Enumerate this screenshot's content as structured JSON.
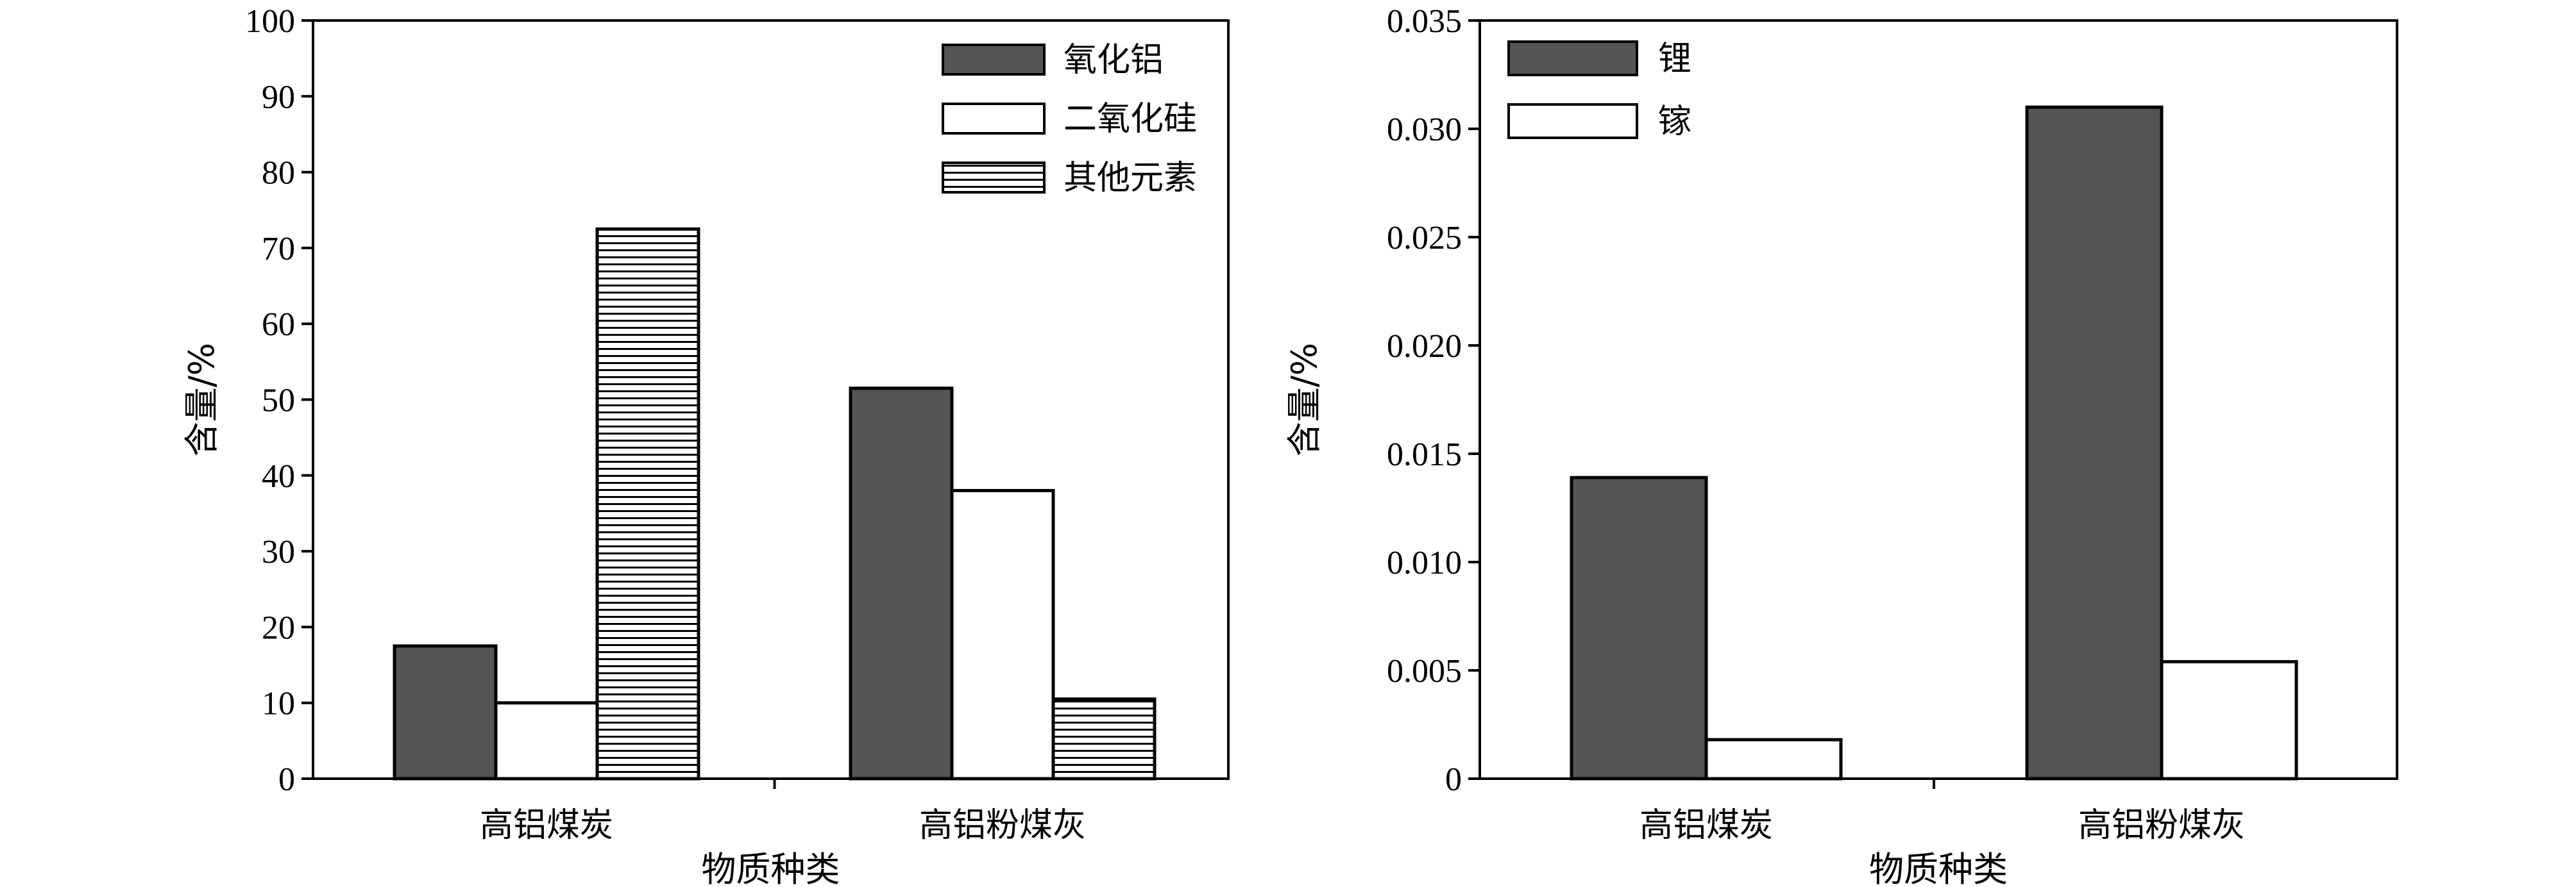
{
  "chart_data": [
    {
      "type": "bar",
      "categories": [
        "高铝煤炭",
        "高铝粉煤灰"
      ],
      "series": [
        {
          "name": "氧化铝",
          "values": [
            17.5,
            51.5
          ],
          "fill": "#555555",
          "pattern": "solid"
        },
        {
          "name": "二氧化硅",
          "values": [
            10,
            38
          ],
          "fill": "#ffffff",
          "pattern": "solid"
        },
        {
          "name": "其他元素",
          "values": [
            72.5,
            10.5
          ],
          "fill": "#ffffff",
          "pattern": "horizontal-lines"
        }
      ],
      "xlabel": "物质种类",
      "ylabel": "含量/%",
      "ylim": [
        0,
        100
      ],
      "yticks": [
        "0",
        "10",
        "20",
        "30",
        "40",
        "50",
        "60",
        "70",
        "80",
        "90",
        "100"
      ],
      "legend": "top-right",
      "grid": false
    },
    {
      "type": "bar",
      "categories": [
        "高铝煤炭",
        "高铝粉煤灰"
      ],
      "series": [
        {
          "name": "锂",
          "values": [
            0.0139,
            0.031
          ],
          "fill": "#555555",
          "pattern": "solid"
        },
        {
          "name": "镓",
          "values": [
            0.0018,
            0.0054
          ],
          "fill": "#ffffff",
          "pattern": "solid"
        }
      ],
      "xlabel": "物质种类",
      "ylabel": "含量/%",
      "ylim": [
        0,
        0.035
      ],
      "yticks": [
        "0",
        "0.005",
        "0.010",
        "0.015",
        "0.020",
        "0.025",
        "0.030",
        "0.035"
      ],
      "legend": "top-left",
      "grid": false
    }
  ]
}
